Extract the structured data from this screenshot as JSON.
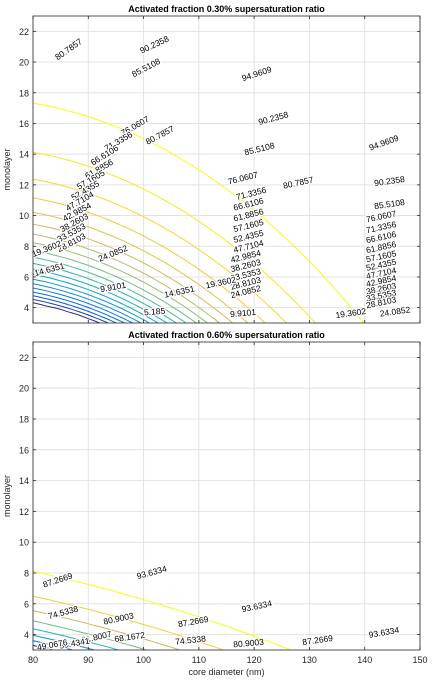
{
  "figure": {
    "xlabel": "core diameter (nm)"
  },
  "chart_data": [
    {
      "type": "contour",
      "title": "Activated fraction 0.30% supersaturation ratio",
      "xlabel": "",
      "ylabel": "monolayer",
      "xlim": [
        80,
        150
      ],
      "ylim": [
        3,
        23
      ],
      "yticks": [
        4,
        6,
        8,
        10,
        12,
        14,
        16,
        18,
        20,
        22
      ],
      "xticks": [
        80,
        90,
        100,
        110,
        120,
        130,
        140,
        150
      ],
      "show_xtick_labels": false,
      "grid": true,
      "colormap": "parula",
      "clabel_positions": [
        {
          "level": "80.7857",
          "x": 86.5,
          "y": 20.8,
          "angle": 35
        },
        {
          "level": "90.2358",
          "x": 102,
          "y": 21.1,
          "angle": 25
        },
        {
          "level": "85.5108",
          "x": 100.5,
          "y": 19.6,
          "angle": 28
        },
        {
          "level": "94.9609",
          "x": 120.5,
          "y": 19.2,
          "angle": 18
        },
        {
          "level": "90.2358",
          "x": 123.5,
          "y": 16.3,
          "angle": 15
        },
        {
          "level": "94.9609",
          "x": 143.5,
          "y": 14.7,
          "angle": 20
        },
        {
          "level": "76.0607",
          "x": 98.5,
          "y": 15.8,
          "angle": 30
        },
        {
          "level": "80.7857",
          "x": 103,
          "y": 15.2,
          "angle": 28
        },
        {
          "level": "85.5108",
          "x": 121,
          "y": 14.3,
          "angle": 14
        },
        {
          "level": "71.3356",
          "x": 95.5,
          "y": 14.8,
          "angle": 30
        },
        {
          "level": "66.6106",
          "x": 93,
          "y": 13.9,
          "angle": 32
        },
        {
          "level": "61.8856",
          "x": 92,
          "y": 13.0,
          "angle": 30
        },
        {
          "level": "57.1605",
          "x": 90.5,
          "y": 12.3,
          "angle": 30
        },
        {
          "level": "52.4355",
          "x": 89.5,
          "y": 11.6,
          "angle": 30
        },
        {
          "level": "47.7104",
          "x": 88.5,
          "y": 10.9,
          "angle": 30
        },
        {
          "level": "42.9854",
          "x": 88,
          "y": 10.2,
          "angle": 28
        },
        {
          "level": "38.2603",
          "x": 87.5,
          "y": 9.5,
          "angle": 28
        },
        {
          "level": "33.5353",
          "x": 87,
          "y": 8.85,
          "angle": 28
        },
        {
          "level": "28.8103",
          "x": 87,
          "y": 8.2,
          "angle": 28
        },
        {
          "level": "24.0852",
          "x": 94.5,
          "y": 7.5,
          "angle": 22
        },
        {
          "level": "19.3602",
          "x": 82.5,
          "y": 7.8,
          "angle": 22
        },
        {
          "level": "14.6351",
          "x": 83,
          "y": 6.45,
          "angle": 15
        },
        {
          "level": "9.9101",
          "x": 94.5,
          "y": 5.3,
          "angle": 10
        },
        {
          "level": "76.0607",
          "x": 118,
          "y": 12.4,
          "angle": 14
        },
        {
          "level": "80.7857",
          "x": 128,
          "y": 12.1,
          "angle": 12
        },
        {
          "level": "71.3356",
          "x": 119.5,
          "y": 11.4,
          "angle": 14
        },
        {
          "level": "66.6106",
          "x": 119,
          "y": 10.7,
          "angle": 14
        },
        {
          "level": "61.8856",
          "x": 119,
          "y": 10.0,
          "angle": 14
        },
        {
          "level": "57.1605",
          "x": 119,
          "y": 9.3,
          "angle": 14
        },
        {
          "level": "52.4355",
          "x": 119,
          "y": 8.6,
          "angle": 14
        },
        {
          "level": "47.7104",
          "x": 119,
          "y": 7.95,
          "angle": 14
        },
        {
          "level": "42.9854",
          "x": 118.5,
          "y": 7.3,
          "angle": 14
        },
        {
          "level": "38.2603",
          "x": 118.5,
          "y": 6.7,
          "angle": 14
        },
        {
          "level": "33.5353",
          "x": 118.5,
          "y": 6.1,
          "angle": 14
        },
        {
          "level": "28.8103",
          "x": 118.5,
          "y": 5.55,
          "angle": 14
        },
        {
          "level": "24.0852",
          "x": 118.5,
          "y": 5.0,
          "angle": 14
        },
        {
          "level": "19.3602",
          "x": 114,
          "y": 5.6,
          "angle": 12
        },
        {
          "level": "14.6351",
          "x": 106.5,
          "y": 5.0,
          "angle": 12
        },
        {
          "level": "9.9101",
          "x": 118,
          "y": 3.6,
          "angle": 5
        },
        {
          "level": "5.185",
          "x": 102,
          "y": 3.7,
          "angle": 5
        },
        {
          "level": "90.2358",
          "x": 144.5,
          "y": 12.2,
          "angle": 8
        },
        {
          "level": "85.5108",
          "x": 144.5,
          "y": 10.7,
          "angle": 8
        },
        {
          "level": "76.0607",
          "x": 143,
          "y": 9.9,
          "angle": 12
        },
        {
          "level": "71.3356",
          "x": 143,
          "y": 9.2,
          "angle": 12
        },
        {
          "level": "66.6106",
          "x": 143,
          "y": 8.55,
          "angle": 12
        },
        {
          "level": "61.8856",
          "x": 143,
          "y": 7.9,
          "angle": 12
        },
        {
          "level": "57.1605",
          "x": 143,
          "y": 7.3,
          "angle": 12
        },
        {
          "level": "52.4355",
          "x": 143,
          "y": 6.75,
          "angle": 12
        },
        {
          "level": "47.7104",
          "x": 143,
          "y": 6.2,
          "angle": 12
        },
        {
          "level": "42.9854",
          "x": 143,
          "y": 5.7,
          "angle": 12
        },
        {
          "level": "38.2603",
          "x": 143,
          "y": 5.2,
          "angle": 12
        },
        {
          "level": "33.5353",
          "x": 143,
          "y": 4.75,
          "angle": 12
        },
        {
          "level": "28.8103",
          "x": 143,
          "y": 4.3,
          "angle": 12
        },
        {
          "level": "24.0852",
          "x": 145.5,
          "y": 3.7,
          "angle": 8
        },
        {
          "level": "19.3602",
          "x": 137.5,
          "y": 3.6,
          "angle": 8
        }
      ]
    },
    {
      "type": "contour",
      "title": "Activated fraction 0.60% supersaturation ratio",
      "xlabel": "core diameter (nm)",
      "ylabel": "monolayer",
      "xlim": [
        80,
        150
      ],
      "ylim": [
        3,
        23
      ],
      "yticks": [
        4,
        6,
        8,
        10,
        12,
        14,
        16,
        18,
        20,
        22
      ],
      "xticks": [
        80,
        90,
        100,
        110,
        120,
        130,
        140,
        150
      ],
      "xtick_labels": [
        "80",
        "90",
        "100",
        "110",
        "120",
        "130",
        "140",
        "150"
      ],
      "grid": true,
      "colormap": "parula",
      "clabel_positions": [
        {
          "level": "93.6334",
          "x": 101.5,
          "y": 8.0,
          "angle": 15
        },
        {
          "level": "87.2669",
          "x": 84.5,
          "y": 7.5,
          "angle": 18
        },
        {
          "level": "93.6334",
          "x": 120.5,
          "y": 5.8,
          "angle": 12
        },
        {
          "level": "93.6334",
          "x": 143.5,
          "y": 4.1,
          "angle": 10
        },
        {
          "level": "74.5338",
          "x": 85.5,
          "y": 5.4,
          "angle": 15
        },
        {
          "level": "80.9003",
          "x": 95.5,
          "y": 5.0,
          "angle": 12
        },
        {
          "level": "87.2669",
          "x": 109,
          "y": 4.8,
          "angle": 10
        },
        {
          "level": "87.2669",
          "x": 131.5,
          "y": 3.6,
          "angle": 8
        },
        {
          "level": "61.8007",
          "x": 91.5,
          "y": 3.8,
          "angle": 12
        },
        {
          "level": "68.1672",
          "x": 97.5,
          "y": 3.8,
          "angle": 8
        },
        {
          "level": "74.5338",
          "x": 108.5,
          "y": 3.6,
          "angle": 6
        },
        {
          "level": "80.9003",
          "x": 119,
          "y": 3.4,
          "angle": 5
        },
        {
          "level": "55.4341",
          "x": 87.5,
          "y": 3.4,
          "angle": 10
        },
        {
          "level": "49.0676",
          "x": 83.5,
          "y": 3.3,
          "angle": 10
        }
      ]
    }
  ]
}
